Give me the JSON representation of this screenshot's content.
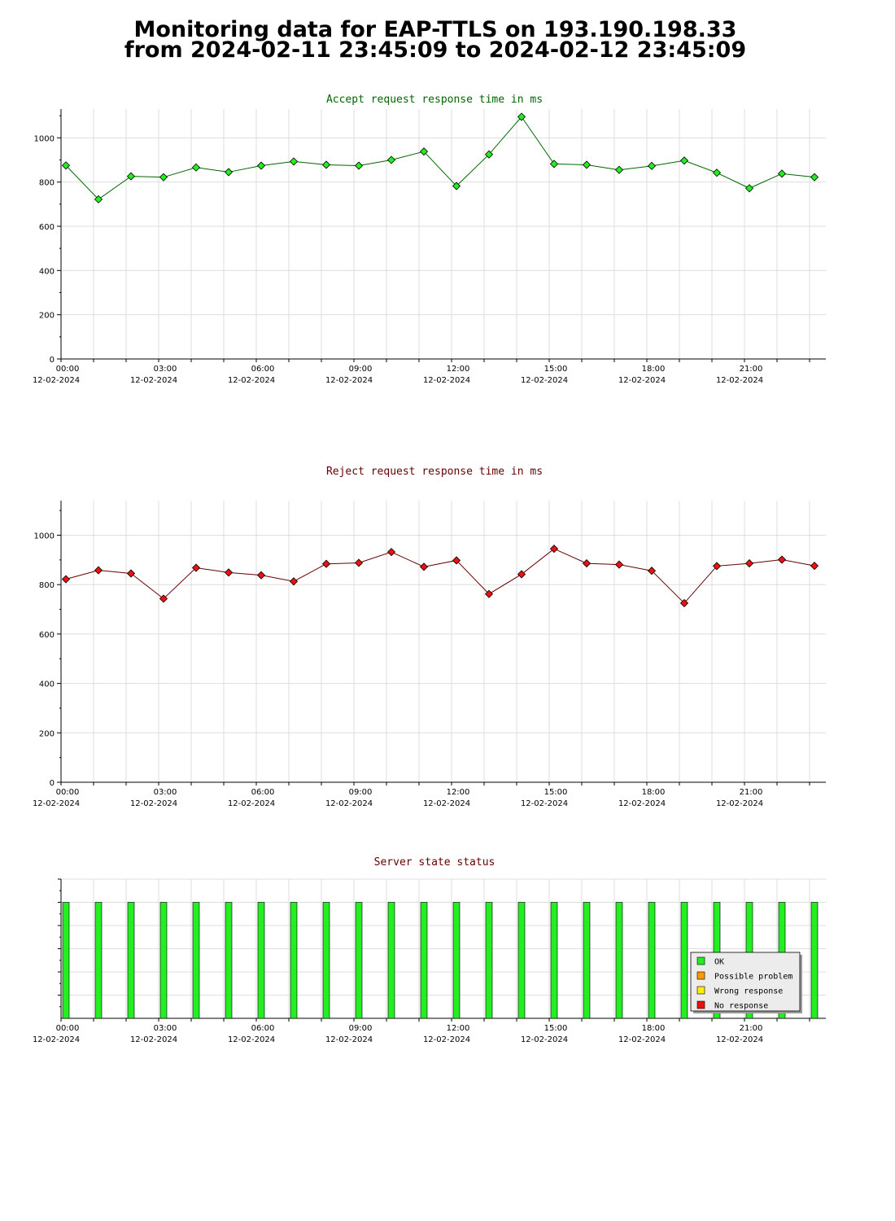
{
  "page": {
    "title_line1": "Monitoring data for EAP-TTLS on 193.190.198.33",
    "title_line2": "from 2024-02-11 23:45:09 to 2024-02-12 23:45:09"
  },
  "chart_data": [
    {
      "type": "line",
      "title": "Accept request response time in ms",
      "title_color": "#006600",
      "marker_color": "#22ee22",
      "line_color": "#006600",
      "ylim": [
        0,
        1130
      ],
      "y_ticks": [
        0,
        200,
        400,
        600,
        800,
        1000
      ],
      "x_ticks": [
        {
          "time": "00:00",
          "date": "12-02-2024",
          "hour": 0
        },
        {
          "time": "03:00",
          "date": "12-02-2024",
          "hour": 3
        },
        {
          "time": "06:00",
          "date": "12-02-2024",
          "hour": 6
        },
        {
          "time": "09:00",
          "date": "12-02-2024",
          "hour": 9
        },
        {
          "time": "12:00",
          "date": "12-02-2024",
          "hour": 12
        },
        {
          "time": "15:00",
          "date": "12-02-2024",
          "hour": 15
        },
        {
          "time": "18:00",
          "date": "12-02-2024",
          "hour": 18
        },
        {
          "time": "21:00",
          "date": "12-02-2024",
          "hour": 21
        }
      ],
      "x": [
        0.15,
        1.15,
        2.15,
        3.15,
        4.15,
        5.15,
        6.15,
        7.15,
        8.15,
        9.15,
        10.15,
        11.15,
        12.15,
        13.15,
        14.15,
        15.15,
        16.15,
        17.15,
        18.15,
        19.15,
        20.15,
        21.15,
        22.15,
        23.15
      ],
      "values": [
        875,
        722,
        826,
        822,
        866,
        845,
        874,
        893,
        878,
        874,
        900,
        938,
        782,
        925,
        1095,
        882,
        878,
        855,
        873,
        897,
        842,
        772,
        838,
        822
      ],
      "grid": true
    },
    {
      "type": "line",
      "title": "Reject request response time in ms",
      "title_color": "#660000",
      "marker_color": "#ee1111",
      "line_color": "#660000",
      "ylim": [
        0,
        1140
      ],
      "y_ticks": [
        0,
        200,
        400,
        600,
        800,
        1000
      ],
      "x_ticks": [
        {
          "time": "00:00",
          "date": "12-02-2024",
          "hour": 0
        },
        {
          "time": "03:00",
          "date": "12-02-2024",
          "hour": 3
        },
        {
          "time": "06:00",
          "date": "12-02-2024",
          "hour": 6
        },
        {
          "time": "09:00",
          "date": "12-02-2024",
          "hour": 9
        },
        {
          "time": "12:00",
          "date": "12-02-2024",
          "hour": 12
        },
        {
          "time": "15:00",
          "date": "12-02-2024",
          "hour": 15
        },
        {
          "time": "18:00",
          "date": "12-02-2024",
          "hour": 18
        },
        {
          "time": "21:00",
          "date": "12-02-2024",
          "hour": 21
        }
      ],
      "x": [
        0.15,
        1.15,
        2.15,
        3.15,
        4.15,
        5.15,
        6.15,
        7.15,
        8.15,
        9.15,
        10.15,
        11.15,
        12.15,
        13.15,
        14.15,
        15.15,
        16.15,
        17.15,
        18.15,
        19.15,
        20.15,
        21.15,
        22.15,
        23.15
      ],
      "values": [
        822,
        858,
        845,
        743,
        868,
        849,
        838,
        813,
        884,
        888,
        932,
        872,
        898,
        762,
        842,
        945,
        886,
        881,
        856,
        725,
        875,
        886,
        901,
        876
      ],
      "grid": true
    },
    {
      "type": "bar",
      "title": "Server state status",
      "title_color": "#660000",
      "ylim": [
        0,
        1.2
      ],
      "x_ticks": [
        {
          "time": "00:00",
          "date": "12-02-2024",
          "hour": 0
        },
        {
          "time": "03:00",
          "date": "12-02-2024",
          "hour": 3
        },
        {
          "time": "06:00",
          "date": "12-02-2024",
          "hour": 6
        },
        {
          "time": "09:00",
          "date": "12-02-2024",
          "hour": 9
        },
        {
          "time": "12:00",
          "date": "12-02-2024",
          "hour": 12
        },
        {
          "time": "15:00",
          "date": "12-02-2024",
          "hour": 15
        },
        {
          "time": "18:00",
          "date": "12-02-2024",
          "hour": 18
        },
        {
          "time": "21:00",
          "date": "12-02-2024",
          "hour": 21
        }
      ],
      "x": [
        0.15,
        1.15,
        2.15,
        3.15,
        4.15,
        5.15,
        6.15,
        7.15,
        8.15,
        9.15,
        10.15,
        11.15,
        12.15,
        13.15,
        14.15,
        15.15,
        16.15,
        17.15,
        18.15,
        19.15,
        20.15,
        21.15,
        22.15,
        23.15
      ],
      "values": [
        1,
        1,
        1,
        1,
        1,
        1,
        1,
        1,
        1,
        1,
        1,
        1,
        1,
        1,
        1,
        1,
        1,
        1,
        1,
        1,
        1,
        1,
        1,
        1
      ],
      "states": [
        "OK",
        "OK",
        "OK",
        "OK",
        "OK",
        "OK",
        "OK",
        "OK",
        "OK",
        "OK",
        "OK",
        "OK",
        "OK",
        "OK",
        "OK",
        "OK",
        "OK",
        "OK",
        "OK",
        "OK",
        "OK",
        "OK",
        "OK",
        "OK"
      ],
      "legend": [
        {
          "label": "OK",
          "color": "#22ee22"
        },
        {
          "label": "Possible problem",
          "color": "#ff9900"
        },
        {
          "label": "Wrong response",
          "color": "#ffee00"
        },
        {
          "label": "No response",
          "color": "#ee1111"
        }
      ],
      "legend_position": "bottom-right",
      "grid": true
    }
  ]
}
